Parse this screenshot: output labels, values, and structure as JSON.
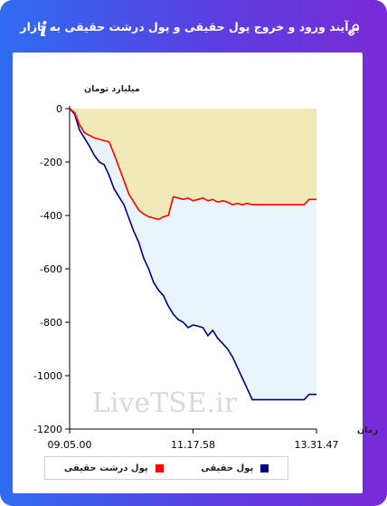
{
  "header": {
    "title": "برآیند ورود و خروج پول حقیقی و پول درشت حقیقی به بازار",
    "info_icon": "info-icon",
    "link_icon": "link-icon"
  },
  "colors": {
    "series_real": "#000080",
    "series_large": "#ff0000",
    "fill_real": "#e8f4fa",
    "fill_large": "#f0eab8",
    "axis": "#000000"
  },
  "chart_data": {
    "type": "area",
    "ylabel": "میلیارد تومان",
    "xlabel": "زمان",
    "ylim": [
      -1200,
      0
    ],
    "yticks": [
      "0",
      "-200",
      "-400",
      "-600",
      "-800",
      "-1000",
      "-1200"
    ],
    "ytick_values": [
      0,
      -200,
      -400,
      -600,
      -800,
      -1000,
      -1200
    ],
    "xticks": [
      "09.05.00",
      "11.17.58",
      "13.31.47"
    ],
    "xtick_values": [
      0,
      0.5,
      1
    ],
    "grid": false,
    "legend_placement": "bottom",
    "watermark": "LiveTSE.ir",
    "series": [
      {
        "name": "پول حقیقی",
        "color": "#000080",
        "x": [
          0,
          0.02,
          0.04,
          0.06,
          0.08,
          0.1,
          0.12,
          0.14,
          0.16,
          0.18,
          0.2,
          0.22,
          0.24,
          0.26,
          0.28,
          0.3,
          0.32,
          0.34,
          0.36,
          0.38,
          0.4,
          0.42,
          0.44,
          0.46,
          0.48,
          0.5,
          0.52,
          0.54,
          0.56,
          0.58,
          0.6,
          0.62,
          0.64,
          0.66,
          0.68,
          0.7,
          0.72,
          0.74,
          0.76,
          0.78,
          0.8,
          0.85,
          0.9,
          0.95,
          0.97,
          1
        ],
        "values": [
          0,
          -20,
          -80,
          -110,
          -140,
          -175,
          -200,
          -210,
          -250,
          -300,
          -330,
          -360,
          -410,
          -460,
          -500,
          -560,
          -600,
          -650,
          -680,
          -700,
          -740,
          -770,
          -790,
          -800,
          -820,
          -810,
          -815,
          -820,
          -850,
          -830,
          -860,
          -880,
          -900,
          -930,
          -970,
          -1010,
          -1050,
          -1090,
          -1090,
          -1090,
          -1090,
          -1090,
          -1090,
          -1090,
          -1070,
          -1070
        ]
      },
      {
        "name": "پول درشت حقیقی",
        "color": "#ff0000",
        "x": [
          0,
          0.02,
          0.04,
          0.06,
          0.08,
          0.1,
          0.12,
          0.14,
          0.16,
          0.18,
          0.2,
          0.22,
          0.24,
          0.26,
          0.28,
          0.3,
          0.32,
          0.34,
          0.36,
          0.38,
          0.4,
          0.42,
          0.44,
          0.46,
          0.48,
          0.5,
          0.52,
          0.54,
          0.56,
          0.58,
          0.6,
          0.62,
          0.64,
          0.66,
          0.68,
          0.7,
          0.72,
          0.74,
          0.76,
          0.78,
          0.8,
          0.85,
          0.9,
          0.95,
          0.97,
          1
        ],
        "values": [
          0,
          -15,
          -60,
          -90,
          -100,
          -110,
          -115,
          -120,
          -125,
          -170,
          -220,
          -270,
          -320,
          -350,
          -380,
          -395,
          -405,
          -410,
          -415,
          -405,
          -400,
          -330,
          -335,
          -340,
          -335,
          -345,
          -340,
          -335,
          -345,
          -340,
          -350,
          -345,
          -350,
          -360,
          -355,
          -360,
          -355,
          -360,
          -360,
          -360,
          -360,
          -360,
          -360,
          -360,
          -340,
          -340
        ]
      }
    ]
  },
  "legend": {
    "items": [
      {
        "label": "پول حقیقی",
        "color": "#000080"
      },
      {
        "label": "پول درشت حقیقی",
        "color": "#ff0000"
      }
    ]
  }
}
